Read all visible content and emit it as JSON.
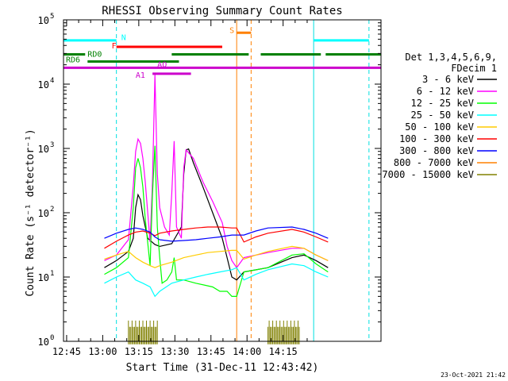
{
  "chart_data": {
    "type": "line",
    "title": "RHESSI Observing Summary Count Rates",
    "xlabel": "Start Time (31-Dec-11 12:43:42)",
    "ylabel": "Count Rate (s⁻¹ detector⁻¹)",
    "ylog": true,
    "ylim": [
      1,
      100000
    ],
    "xlim_min": [
      0,
      132
    ],
    "x_ticks": [
      {
        "m": 1.3,
        "label": "12:45"
      },
      {
        "m": 16.3,
        "label": "13:00"
      },
      {
        "m": 31.3,
        "label": "13:15"
      },
      {
        "m": 46.3,
        "label": "13:30"
      },
      {
        "m": 61.3,
        "label": "13:45"
      },
      {
        "m": 76.3,
        "label": "14:00"
      },
      {
        "m": 91.3,
        "label": "14:15"
      }
    ],
    "y_ticks": [
      {
        "v": 1,
        "base": "10",
        "exp": "0"
      },
      {
        "v": 10,
        "base": "10",
        "exp": "1"
      },
      {
        "v": 100,
        "base": "10",
        "exp": "2"
      },
      {
        "v": 1000,
        "base": "10",
        "exp": "3"
      },
      {
        "v": 10000,
        "base": "10",
        "exp": "4"
      },
      {
        "v": 100000,
        "base": "10",
        "exp": "5"
      }
    ],
    "legend_header": [
      "Det 1,3,4,5,6,9,",
      "FDecim 1"
    ],
    "series": [
      {
        "name": "3 - 6 keV",
        "color": "#000000",
        "points": [
          [
            17,
            14
          ],
          [
            22,
            18
          ],
          [
            27,
            25
          ],
          [
            29,
            40
          ],
          [
            30,
            120
          ],
          [
            31,
            190
          ],
          [
            32,
            160
          ],
          [
            33,
            90
          ],
          [
            35,
            40
          ],
          [
            38,
            32
          ],
          [
            40,
            30
          ],
          [
            45,
            33
          ],
          [
            49,
            60
          ],
          [
            50,
            400
          ],
          [
            51,
            950
          ],
          [
            52,
            980
          ],
          [
            54,
            600
          ],
          [
            58,
            250
          ],
          [
            62,
            100
          ],
          [
            66,
            40
          ],
          [
            68,
            20
          ],
          [
            70,
            10
          ],
          [
            72,
            9
          ],
          [
            75,
            12
          ],
          [
            85,
            14
          ],
          [
            95,
            20
          ],
          [
            100,
            22
          ],
          [
            105,
            18
          ],
          [
            110,
            14
          ]
        ]
      },
      {
        "name": "6 - 12 keV",
        "color": "#ff00ff",
        "points": [
          [
            17,
            18
          ],
          [
            22,
            22
          ],
          [
            27,
            38
          ],
          [
            29,
            260
          ],
          [
            30,
            900
          ],
          [
            31,
            1400
          ],
          [
            32,
            1200
          ],
          [
            33,
            700
          ],
          [
            34,
            300
          ],
          [
            36,
            35
          ],
          [
            37,
            300
          ],
          [
            38,
            14000
          ],
          [
            39,
            400
          ],
          [
            40,
            120
          ],
          [
            42,
            60
          ],
          [
            44,
            45
          ],
          [
            45,
            200
          ],
          [
            46,
            1300
          ],
          [
            47,
            60
          ],
          [
            49,
            40
          ],
          [
            50,
            500
          ],
          [
            51,
            950
          ],
          [
            54,
            700
          ],
          [
            58,
            300
          ],
          [
            62,
            150
          ],
          [
            66,
            70
          ],
          [
            68,
            30
          ],
          [
            70,
            18
          ],
          [
            72,
            14
          ],
          [
            75,
            20
          ],
          [
            85,
            24
          ],
          [
            95,
            28
          ],
          [
            100,
            28
          ],
          [
            105,
            22
          ],
          [
            110,
            18
          ]
        ]
      },
      {
        "name": "12 - 25 keV",
        "color": "#00ff00",
        "points": [
          [
            17,
            11
          ],
          [
            22,
            14
          ],
          [
            27,
            20
          ],
          [
            29,
            120
          ],
          [
            30,
            500
          ],
          [
            31,
            700
          ],
          [
            32,
            500
          ],
          [
            33,
            250
          ],
          [
            34,
            80
          ],
          [
            36,
            15
          ],
          [
            37,
            200
          ],
          [
            38,
            1100
          ],
          [
            39,
            60
          ],
          [
            40,
            20
          ],
          [
            41,
            8
          ],
          [
            43,
            9
          ],
          [
            45,
            12
          ],
          [
            46,
            20
          ],
          [
            47,
            9
          ],
          [
            50,
            9
          ],
          [
            55,
            8
          ],
          [
            62,
            7
          ],
          [
            65,
            6
          ],
          [
            68,
            6
          ],
          [
            70,
            5
          ],
          [
            72,
            5
          ],
          [
            75,
            12
          ],
          [
            85,
            14
          ],
          [
            95,
            22
          ],
          [
            100,
            23
          ],
          [
            105,
            16
          ],
          [
            110,
            12
          ]
        ]
      },
      {
        "name": "25 - 50 keV",
        "color": "#00ffff",
        "points": [
          [
            17,
            8
          ],
          [
            22,
            10
          ],
          [
            27,
            12
          ],
          [
            30,
            9
          ],
          [
            33,
            8
          ],
          [
            36,
            7
          ],
          [
            38,
            5
          ],
          [
            40,
            6
          ],
          [
            45,
            8
          ],
          [
            50,
            9
          ],
          [
            55,
            10
          ],
          [
            60,
            11
          ],
          [
            65,
            12
          ],
          [
            70,
            13
          ],
          [
            72,
            14
          ],
          [
            75,
            9
          ],
          [
            80,
            11
          ],
          [
            85,
            13
          ],
          [
            95,
            16
          ],
          [
            100,
            15
          ],
          [
            105,
            12
          ],
          [
            110,
            10
          ]
        ]
      },
      {
        "name": "50 - 100 keV",
        "color": "#ffcc00",
        "points": [
          [
            17,
            19
          ],
          [
            22,
            22
          ],
          [
            27,
            25
          ],
          [
            30,
            20
          ],
          [
            33,
            17
          ],
          [
            36,
            15
          ],
          [
            38,
            14
          ],
          [
            40,
            15
          ],
          [
            45,
            17
          ],
          [
            50,
            20
          ],
          [
            55,
            22
          ],
          [
            60,
            24
          ],
          [
            65,
            25
          ],
          [
            70,
            26
          ],
          [
            72,
            26
          ],
          [
            75,
            19
          ],
          [
            80,
            22
          ],
          [
            85,
            25
          ],
          [
            95,
            30
          ],
          [
            100,
            28
          ],
          [
            105,
            22
          ],
          [
            110,
            18
          ]
        ]
      },
      {
        "name": "100 - 300 keV",
        "color": "#ff0000",
        "points": [
          [
            17,
            28
          ],
          [
            22,
            36
          ],
          [
            27,
            45
          ],
          [
            30,
            50
          ],
          [
            33,
            52
          ],
          [
            36,
            48
          ],
          [
            38,
            44
          ],
          [
            40,
            48
          ],
          [
            45,
            52
          ],
          [
            50,
            55
          ],
          [
            55,
            58
          ],
          [
            60,
            60
          ],
          [
            65,
            60
          ],
          [
            70,
            58
          ],
          [
            72,
            58
          ],
          [
            75,
            35
          ],
          [
            80,
            42
          ],
          [
            85,
            48
          ],
          [
            95,
            55
          ],
          [
            100,
            50
          ],
          [
            105,
            42
          ],
          [
            110,
            35
          ]
        ]
      },
      {
        "name": "300 - 800 keV",
        "color": "#0000ff",
        "points": [
          [
            17,
            40
          ],
          [
            22,
            48
          ],
          [
            27,
            55
          ],
          [
            30,
            58
          ],
          [
            33,
            55
          ],
          [
            36,
            50
          ],
          [
            38,
            42
          ],
          [
            40,
            38
          ],
          [
            45,
            36
          ],
          [
            50,
            37
          ],
          [
            55,
            38
          ],
          [
            60,
            40
          ],
          [
            65,
            42
          ],
          [
            70,
            45
          ],
          [
            72,
            45
          ],
          [
            75,
            45
          ],
          [
            80,
            52
          ],
          [
            85,
            58
          ],
          [
            95,
            60
          ],
          [
            100,
            55
          ],
          [
            105,
            48
          ],
          [
            110,
            40
          ]
        ]
      }
    ],
    "other_legend_entries": [
      {
        "name": "800 - 7000 keV",
        "color": "#ff8000"
      },
      {
        "name": "7000 - 15000 keV",
        "color": "#808000"
      }
    ],
    "vertical_lines": [
      {
        "m": 22.0,
        "color": "#00e0e0",
        "dash": true
      },
      {
        "m": 72.0,
        "color": "#ff8000",
        "dash": false
      },
      {
        "m": 78.0,
        "color": "#ff8000",
        "dash": true
      },
      {
        "m": 104.0,
        "color": "#00e0e0",
        "dash": false
      },
      {
        "m": 127.0,
        "color": "#00e0e0",
        "dash": true
      }
    ],
    "flag_bars": [
      {
        "label": "N",
        "color": "#00ffff",
        "label_at": 24,
        "label_v": 54000,
        "v": 48000,
        "segments": [
          [
            0,
            22
          ],
          [
            104,
            127
          ]
        ]
      },
      {
        "label": "F",
        "color": "#ff0000",
        "label_at": 20,
        "label_v": 40000,
        "v": 38000,
        "segments": [
          [
            22,
            66
          ]
        ]
      },
      {
        "label": "S",
        "color": "#ff8000",
        "label_at": 69,
        "label_v": 70000,
        "v": 63000,
        "segments": [
          [
            72,
            78
          ]
        ]
      },
      {
        "label": "RD0",
        "color": "#008000",
        "label_at": 10,
        "label_v": 30000,
        "v": 29000,
        "segments": [
          [
            0,
            9
          ],
          [
            45,
            77
          ],
          [
            82,
            107
          ],
          [
            109,
            132
          ]
        ]
      },
      {
        "label": "RD6",
        "color": "#008000",
        "label_at": 1,
        "label_v": 24500,
        "v": 22500,
        "segments": [
          [
            10,
            48
          ]
        ]
      },
      {
        "label": "AO",
        "color": "#cc00cc",
        "label_at": 39,
        "label_v": 20500,
        "v": 18000,
        "segments": [
          [
            0,
            132
          ]
        ]
      },
      {
        "label": "A1",
        "color": "#cc00cc",
        "label_at": 30,
        "label_v": 14000,
        "v": 14500,
        "segments": [
          [
            37,
            53
          ]
        ]
      }
    ],
    "bg_spikes": {
      "color": "#808000",
      "ranges": [
        [
          27,
          39
        ],
        [
          85,
          98
        ]
      ],
      "low": 0.9,
      "high": 2.1
    }
  },
  "footer": {
    "timestamp": "23-Oct-2021 21:42"
  }
}
